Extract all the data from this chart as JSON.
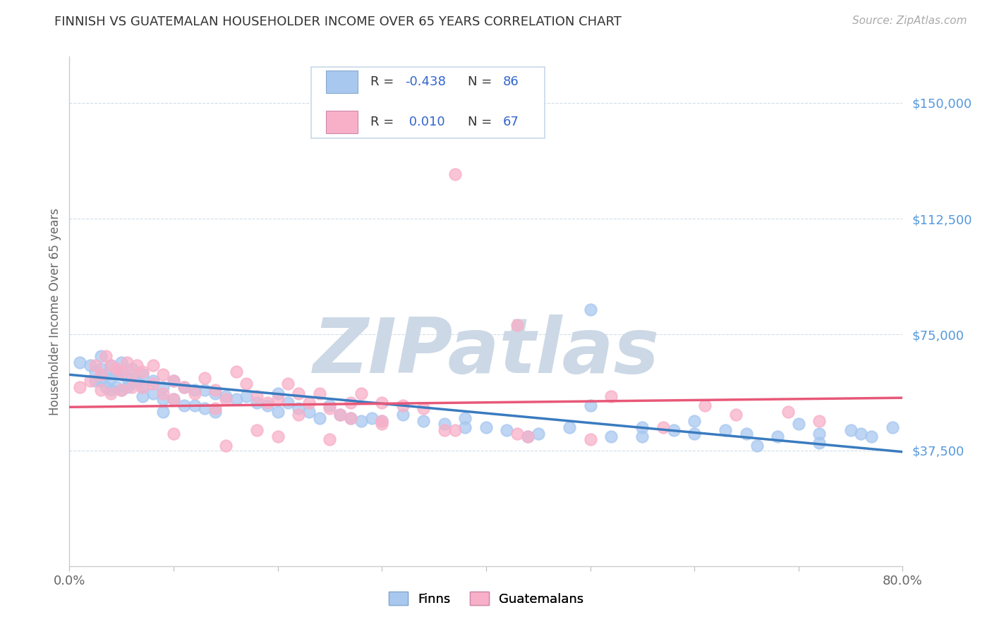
{
  "title": "FINNISH VS GUATEMALAN HOUSEHOLDER INCOME OVER 65 YEARS CORRELATION CHART",
  "source": "Source: ZipAtlas.com",
  "ylabel": "Householder Income Over 65 years",
  "ytick_labels": [
    "$37,500",
    "$75,000",
    "$112,500",
    "$150,000"
  ],
  "ytick_values": [
    37500,
    75000,
    112500,
    150000
  ],
  "ylim": [
    0,
    165000
  ],
  "xlim": [
    0.0,
    0.8
  ],
  "blue_color": "#a8c8f0",
  "pink_color": "#f8b0c8",
  "blue_line_color": "#3a7bbf",
  "pink_line_color": "#e85878",
  "grid_color": "#d0dde8",
  "watermark_color": "#ccd8e5",
  "title_color": "#333333",
  "ylabel_color": "#666666",
  "yticklabel_color": "#5599dd",
  "source_color": "#aaaaaa",
  "background_color": "#ffffff",
  "watermark_text": "ZIPatlas",
  "legend_label_blue": "Finns",
  "legend_label_pink": "Guatemalans",
  "blue_R": "-0.438",
  "blue_N": "86",
  "pink_R": "0.010",
  "pink_N": "67",
  "legend_N_color": "#3366cc",
  "legend_val_color": "#3366cc",
  "blue_trendline_x": [
    0.0,
    0.8
  ],
  "blue_trendline_y": [
    62000,
    37000
  ],
  "pink_trendline_x": [
    0.0,
    0.8
  ],
  "pink_trendline_y": [
    51500,
    54500
  ],
  "blue_scatter_x": [
    0.01,
    0.02,
    0.025,
    0.025,
    0.03,
    0.03,
    0.03,
    0.035,
    0.035,
    0.04,
    0.04,
    0.04,
    0.045,
    0.045,
    0.05,
    0.05,
    0.05,
    0.055,
    0.055,
    0.06,
    0.06,
    0.065,
    0.07,
    0.07,
    0.07,
    0.08,
    0.08,
    0.09,
    0.09,
    0.09,
    0.1,
    0.1,
    0.11,
    0.11,
    0.12,
    0.12,
    0.13,
    0.13,
    0.14,
    0.14,
    0.15,
    0.16,
    0.17,
    0.18,
    0.19,
    0.2,
    0.2,
    0.21,
    0.22,
    0.23,
    0.24,
    0.25,
    0.26,
    0.27,
    0.28,
    0.29,
    0.3,
    0.32,
    0.34,
    0.36,
    0.38,
    0.4,
    0.42,
    0.45,
    0.48,
    0.5,
    0.52,
    0.55,
    0.58,
    0.6,
    0.63,
    0.65,
    0.68,
    0.7,
    0.72,
    0.75,
    0.77,
    0.79,
    0.5,
    0.44,
    0.38,
    0.55,
    0.6,
    0.66,
    0.72,
    0.76
  ],
  "blue_scatter_y": [
    66000,
    65000,
    63000,
    60000,
    68000,
    64000,
    60000,
    62000,
    58000,
    65000,
    61000,
    57000,
    63000,
    58000,
    66000,
    62000,
    57000,
    61000,
    58000,
    64000,
    59000,
    60000,
    62000,
    58000,
    55000,
    60000,
    56000,
    58000,
    54000,
    50000,
    60000,
    54000,
    58000,
    52000,
    57000,
    52000,
    57000,
    51000,
    56000,
    50000,
    55000,
    54000,
    55000,
    53000,
    52000,
    56000,
    50000,
    53000,
    51000,
    50000,
    48000,
    52000,
    49000,
    48000,
    47000,
    48000,
    47000,
    49000,
    47000,
    46000,
    48000,
    45000,
    44000,
    43000,
    45000,
    83000,
    42000,
    45000,
    44000,
    47000,
    44000,
    43000,
    42000,
    46000,
    43000,
    44000,
    42000,
    45000,
    52000,
    42000,
    45000,
    42000,
    43000,
    39000,
    40000,
    43000
  ],
  "pink_scatter_x": [
    0.01,
    0.02,
    0.025,
    0.03,
    0.03,
    0.035,
    0.04,
    0.04,
    0.045,
    0.05,
    0.05,
    0.055,
    0.06,
    0.06,
    0.065,
    0.07,
    0.07,
    0.08,
    0.08,
    0.09,
    0.09,
    0.1,
    0.1,
    0.11,
    0.12,
    0.13,
    0.14,
    0.14,
    0.15,
    0.16,
    0.17,
    0.18,
    0.19,
    0.2,
    0.21,
    0.22,
    0.23,
    0.24,
    0.25,
    0.26,
    0.27,
    0.28,
    0.3,
    0.32,
    0.34,
    0.27,
    0.22,
    0.18,
    0.3,
    0.37,
    0.44,
    0.52,
    0.61,
    0.69,
    0.1,
    0.15,
    0.2,
    0.25,
    0.3,
    0.36,
    0.43,
    0.5,
    0.57,
    0.64,
    0.72,
    0.37,
    0.43
  ],
  "pink_scatter_y": [
    58000,
    60000,
    65000,
    62000,
    57000,
    68000,
    65000,
    56000,
    64000,
    63000,
    57000,
    66000,
    62000,
    58000,
    65000,
    63000,
    58000,
    65000,
    59000,
    62000,
    56000,
    60000,
    54000,
    58000,
    56000,
    61000,
    57000,
    51000,
    54000,
    63000,
    59000,
    55000,
    53000,
    54000,
    59000,
    56000,
    53000,
    56000,
    51000,
    49000,
    53000,
    56000,
    53000,
    52000,
    51000,
    48000,
    49000,
    44000,
    46000,
    44000,
    42000,
    55000,
    52000,
    50000,
    43000,
    39000,
    42000,
    41000,
    47000,
    44000,
    43000,
    41000,
    45000,
    49000,
    47000,
    127000,
    78000
  ]
}
